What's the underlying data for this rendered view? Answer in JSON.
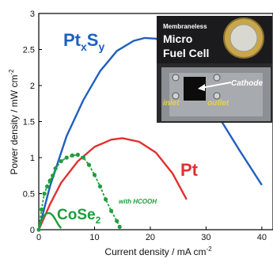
{
  "chart_data": {
    "type": "line",
    "xlabel": "Current density / mA cm",
    "xlabel_sup": "-2",
    "ylabel": "Power density / mW cm",
    "ylabel_sup": "-2",
    "xlim": [
      0,
      42
    ],
    "ylim": [
      0,
      3
    ],
    "xticks": [
      "0",
      "10",
      "20",
      "30",
      "40"
    ],
    "yticks": [
      "0",
      "0.5",
      "1",
      "1.5",
      "2",
      "2.5",
      "3"
    ],
    "series": [
      {
        "name_main": "Pt",
        "sub1": "x",
        "mid": "S",
        "sub2": "y",
        "color": "#1f5fbf",
        "style": "solid",
        "points": [
          [
            0,
            0
          ],
          [
            2,
            0.6
          ],
          [
            5,
            1.3
          ],
          [
            8,
            1.8
          ],
          [
            11,
            2.2
          ],
          [
            14,
            2.48
          ],
          [
            17,
            2.62
          ],
          [
            19,
            2.66
          ],
          [
            21,
            2.65
          ],
          [
            24,
            2.5
          ],
          [
            28,
            2.1
          ],
          [
            32,
            1.6
          ],
          [
            36,
            1.1
          ],
          [
            40,
            0.62
          ]
        ]
      },
      {
        "name": "Pt",
        "color": "#e03030",
        "style": "solid",
        "points": [
          [
            0,
            0
          ],
          [
            2,
            0.35
          ],
          [
            4,
            0.65
          ],
          [
            7,
            0.95
          ],
          [
            10,
            1.15
          ],
          [
            13,
            1.25
          ],
          [
            15,
            1.27
          ],
          [
            18,
            1.22
          ],
          [
            21,
            1.07
          ],
          [
            24,
            0.78
          ],
          [
            26.5,
            0.42
          ]
        ]
      },
      {
        "name": "with HCOOH",
        "color": "#1e9e3c",
        "style": "dashed-markers",
        "points": [
          [
            0,
            0
          ],
          [
            0.5,
            0.28
          ],
          [
            1,
            0.5
          ],
          [
            1.5,
            0.6
          ],
          [
            2,
            0.68
          ],
          [
            2.5,
            0.75
          ],
          [
            3,
            0.85
          ],
          [
            4,
            0.95
          ],
          [
            5,
            1.0
          ],
          [
            6,
            1.03
          ],
          [
            7,
            1.04
          ],
          [
            8,
            1.0
          ],
          [
            9,
            0.9
          ],
          [
            10,
            0.76
          ],
          [
            11,
            0.6
          ],
          [
            12,
            0.42
          ],
          [
            13,
            0.26
          ],
          [
            14,
            0.12
          ],
          [
            14.5,
            0.04
          ]
        ]
      },
      {
        "name_main": "CoSe",
        "sub1": "2",
        "color": "#1e9e3c",
        "style": "solid",
        "points": [
          [
            0,
            0
          ],
          [
            0.5,
            0.13
          ],
          [
            1,
            0.2
          ],
          [
            1.5,
            0.23
          ],
          [
            2,
            0.23
          ],
          [
            2.5,
            0.2
          ],
          [
            3,
            0.14
          ],
          [
            3.5,
            0.07
          ],
          [
            4,
            0.02
          ]
        ]
      }
    ],
    "inset": {
      "title_small": "Membraneless",
      "title_line1": "Micro",
      "title_line2": "Fuel Cell",
      "cathode_label": "Cathode",
      "inlet_label": "inlet",
      "outlet_label": "outlet"
    }
  }
}
